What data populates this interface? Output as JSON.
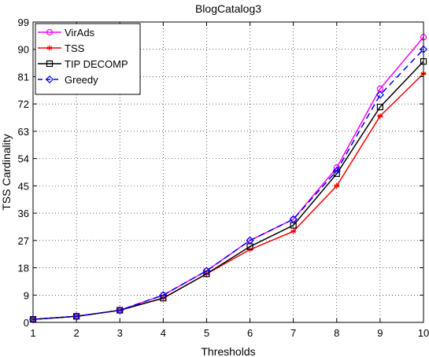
{
  "chart_data": {
    "type": "line",
    "title": "BlogCatalog3",
    "xlabel": "Thresholds",
    "ylabel": "TSS Cardinality",
    "x": [
      1,
      2,
      3,
      4,
      5,
      6,
      7,
      8,
      9,
      10
    ],
    "xlim": [
      1,
      10
    ],
    "ylim": [
      0,
      99
    ],
    "xticks": [
      1,
      2,
      3,
      4,
      5,
      6,
      7,
      8,
      9,
      10
    ],
    "yticks": [
      0,
      9,
      18,
      27,
      36,
      45,
      54,
      63,
      72,
      81,
      90,
      99
    ],
    "grid": true,
    "legend_position": "top-left",
    "series": [
      {
        "name": "VirAds",
        "color": "#ff00ff",
        "marker": "circle",
        "dash": "solid",
        "values": [
          1,
          2,
          4,
          9,
          17,
          27,
          34,
          51,
          77,
          94
        ]
      },
      {
        "name": "TSS",
        "color": "#ff0000",
        "marker": "star",
        "dash": "solid",
        "values": [
          1,
          2,
          4,
          8,
          16,
          24,
          30,
          45,
          68,
          82
        ]
      },
      {
        "name": "TIP DECOMP",
        "color": "#000000",
        "marker": "square",
        "dash": "solid",
        "values": [
          1,
          2,
          4,
          8,
          16,
          25,
          32,
          49,
          71,
          86
        ]
      },
      {
        "name": "Greedy",
        "color": "#0000ff",
        "marker": "diamond",
        "dash": "dashed",
        "values": [
          1,
          2,
          4,
          9,
          17,
          27,
          34,
          50,
          75,
          90
        ]
      }
    ]
  }
}
